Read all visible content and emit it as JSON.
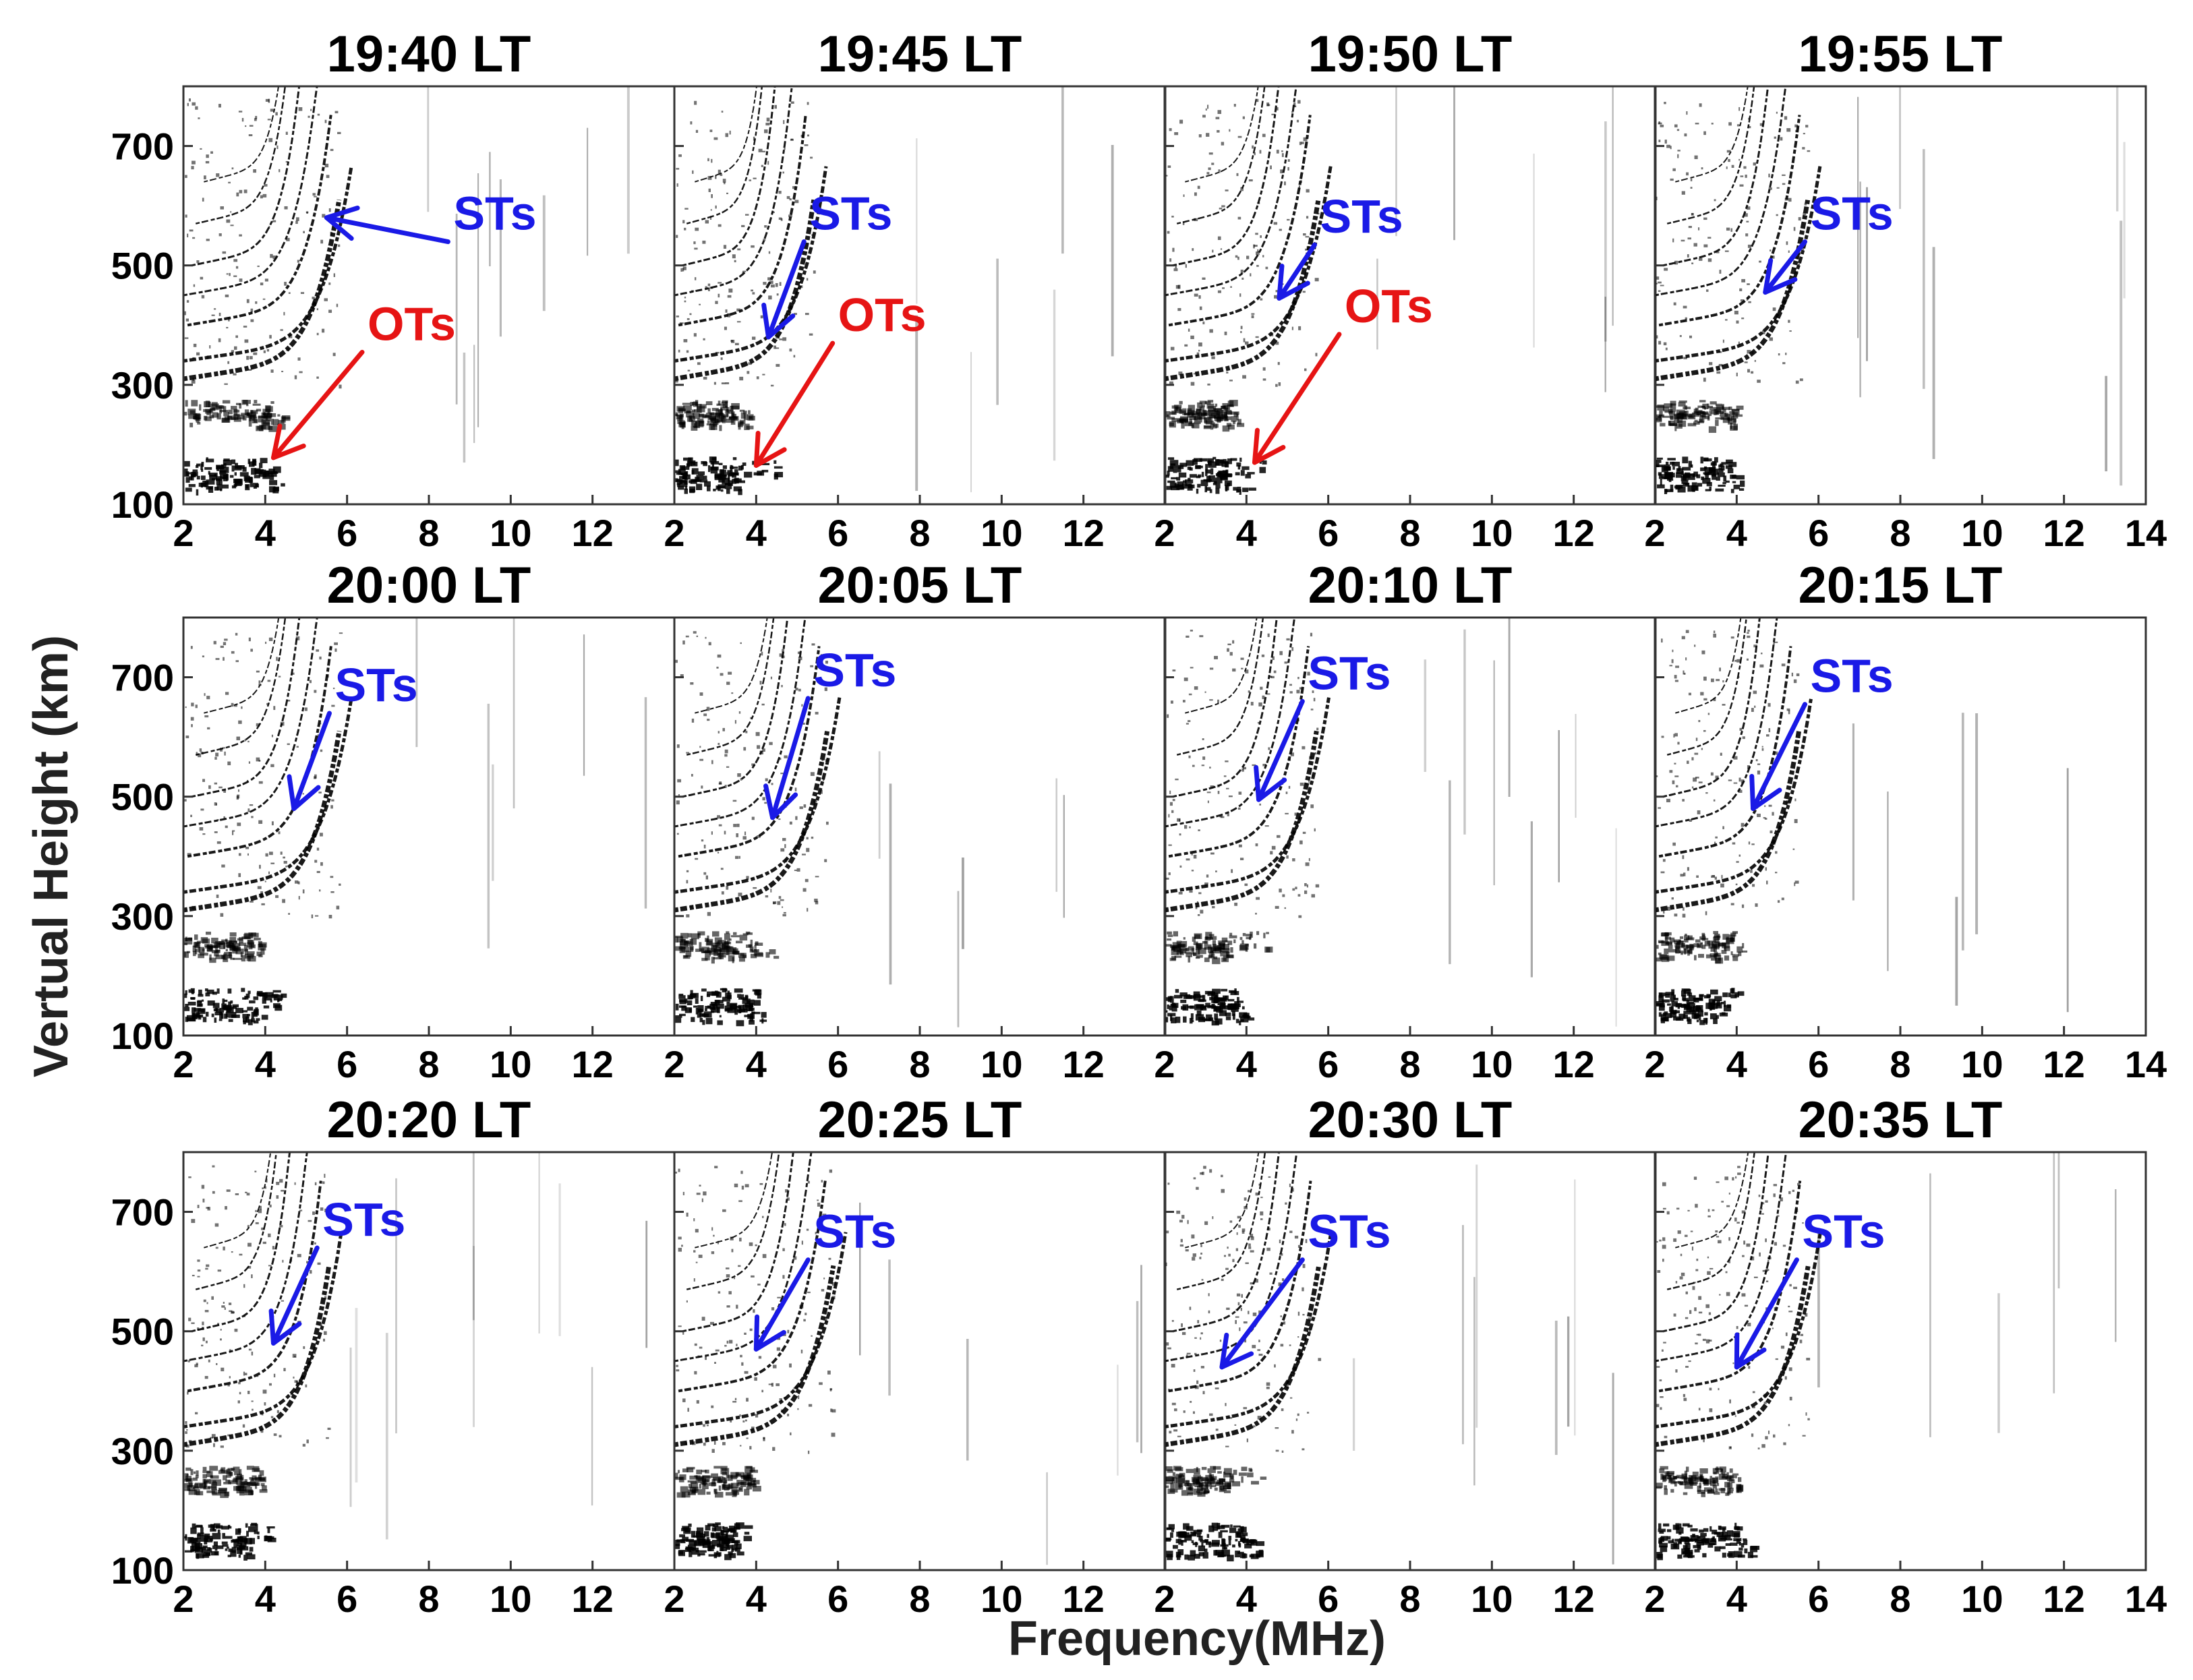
{
  "colors": {
    "background": "#ffffff",
    "trace": "#000000",
    "axis": "#333333",
    "st_annotation": "#1a1ae6",
    "ot_annotation": "#e61414"
  },
  "chart_data": {
    "type": "scatter",
    "description_kind": "ionogram-grid",
    "xlabel": "Frequency(MHz)",
    "ylabel": "Vertual  Height (km)",
    "xlim": [
      2,
      14
    ],
    "ylim": [
      100,
      800
    ],
    "x_ticks": [
      2,
      4,
      6,
      8,
      10,
      12
    ],
    "x_ticks_last_column": [
      2,
      4,
      6,
      8,
      10,
      12,
      14
    ],
    "y_ticks": [
      100,
      300,
      500,
      700
    ],
    "panels": [
      {
        "title": "19:40 LT",
        "annotations": [
          {
            "label": "STs",
            "color": "blue",
            "arrow_tip": [
              5.5,
              580
            ],
            "text_at": [
              8.6,
              560
            ]
          },
          {
            "label": "OTs",
            "color": "red",
            "arrow_tip": [
              4.2,
              178
            ],
            "text_at": [
              6.5,
              375
            ]
          }
        ]
      },
      {
        "title": "19:45 LT",
        "annotations": [
          {
            "label": "STs",
            "color": "blue",
            "arrow_tip": [
              4.3,
              380
            ],
            "text_at": [
              5.3,
              560
            ]
          },
          {
            "label": "OTs",
            "color": "red",
            "arrow_tip": [
              4.0,
              165
            ],
            "text_at": [
              6.0,
              390
            ]
          }
        ]
      },
      {
        "title": "19:50 LT",
        "annotations": [
          {
            "label": "STs",
            "color": "blue",
            "arrow_tip": [
              4.8,
              445
            ],
            "text_at": [
              5.8,
              555
            ]
          },
          {
            "label": "OTs",
            "color": "red",
            "arrow_tip": [
              4.2,
              170
            ],
            "text_at": [
              6.4,
              405
            ]
          }
        ]
      },
      {
        "title": "19:55 LT",
        "annotations": [
          {
            "label": "STs",
            "color": "blue",
            "arrow_tip": [
              4.7,
              455
            ],
            "text_at": [
              5.8,
              560
            ]
          }
        ]
      },
      {
        "title": "20:00 LT",
        "annotations": [
          {
            "label": "STs",
            "color": "blue",
            "arrow_tip": [
              4.7,
              480
            ],
            "text_at": [
              5.7,
              660
            ]
          }
        ]
      },
      {
        "title": "20:05 LT",
        "annotations": [
          {
            "label": "STs",
            "color": "blue",
            "arrow_tip": [
              4.4,
              465
            ],
            "text_at": [
              5.4,
              685
            ]
          }
        ]
      },
      {
        "title": "20:10 LT",
        "annotations": [
          {
            "label": "STs",
            "color": "blue",
            "arrow_tip": [
              4.3,
              495
            ],
            "text_at": [
              5.5,
              680
            ]
          }
        ]
      },
      {
        "title": "20:15 LT",
        "annotations": [
          {
            "label": "STs",
            "color": "blue",
            "arrow_tip": [
              4.4,
              480
            ],
            "text_at": [
              5.8,
              675
            ]
          }
        ]
      },
      {
        "title": "20:20 LT",
        "annotations": [
          {
            "label": "STs",
            "color": "blue",
            "arrow_tip": [
              4.2,
              480
            ],
            "text_at": [
              5.4,
              660
            ]
          }
        ]
      },
      {
        "title": "20:25 LT",
        "annotations": [
          {
            "label": "STs",
            "color": "blue",
            "arrow_tip": [
              4.0,
              470
            ],
            "text_at": [
              5.4,
              640
            ]
          }
        ]
      },
      {
        "title": "20:30 LT",
        "annotations": [
          {
            "label": "STs",
            "color": "blue",
            "arrow_tip": [
              3.4,
              440
            ],
            "text_at": [
              5.5,
              640
            ]
          }
        ]
      },
      {
        "title": "20:35 LT",
        "annotations": [
          {
            "label": "STs",
            "color": "blue",
            "arrow_tip": [
              4.0,
              440
            ],
            "text_at": [
              5.6,
              640
            ]
          }
        ]
      }
    ]
  }
}
